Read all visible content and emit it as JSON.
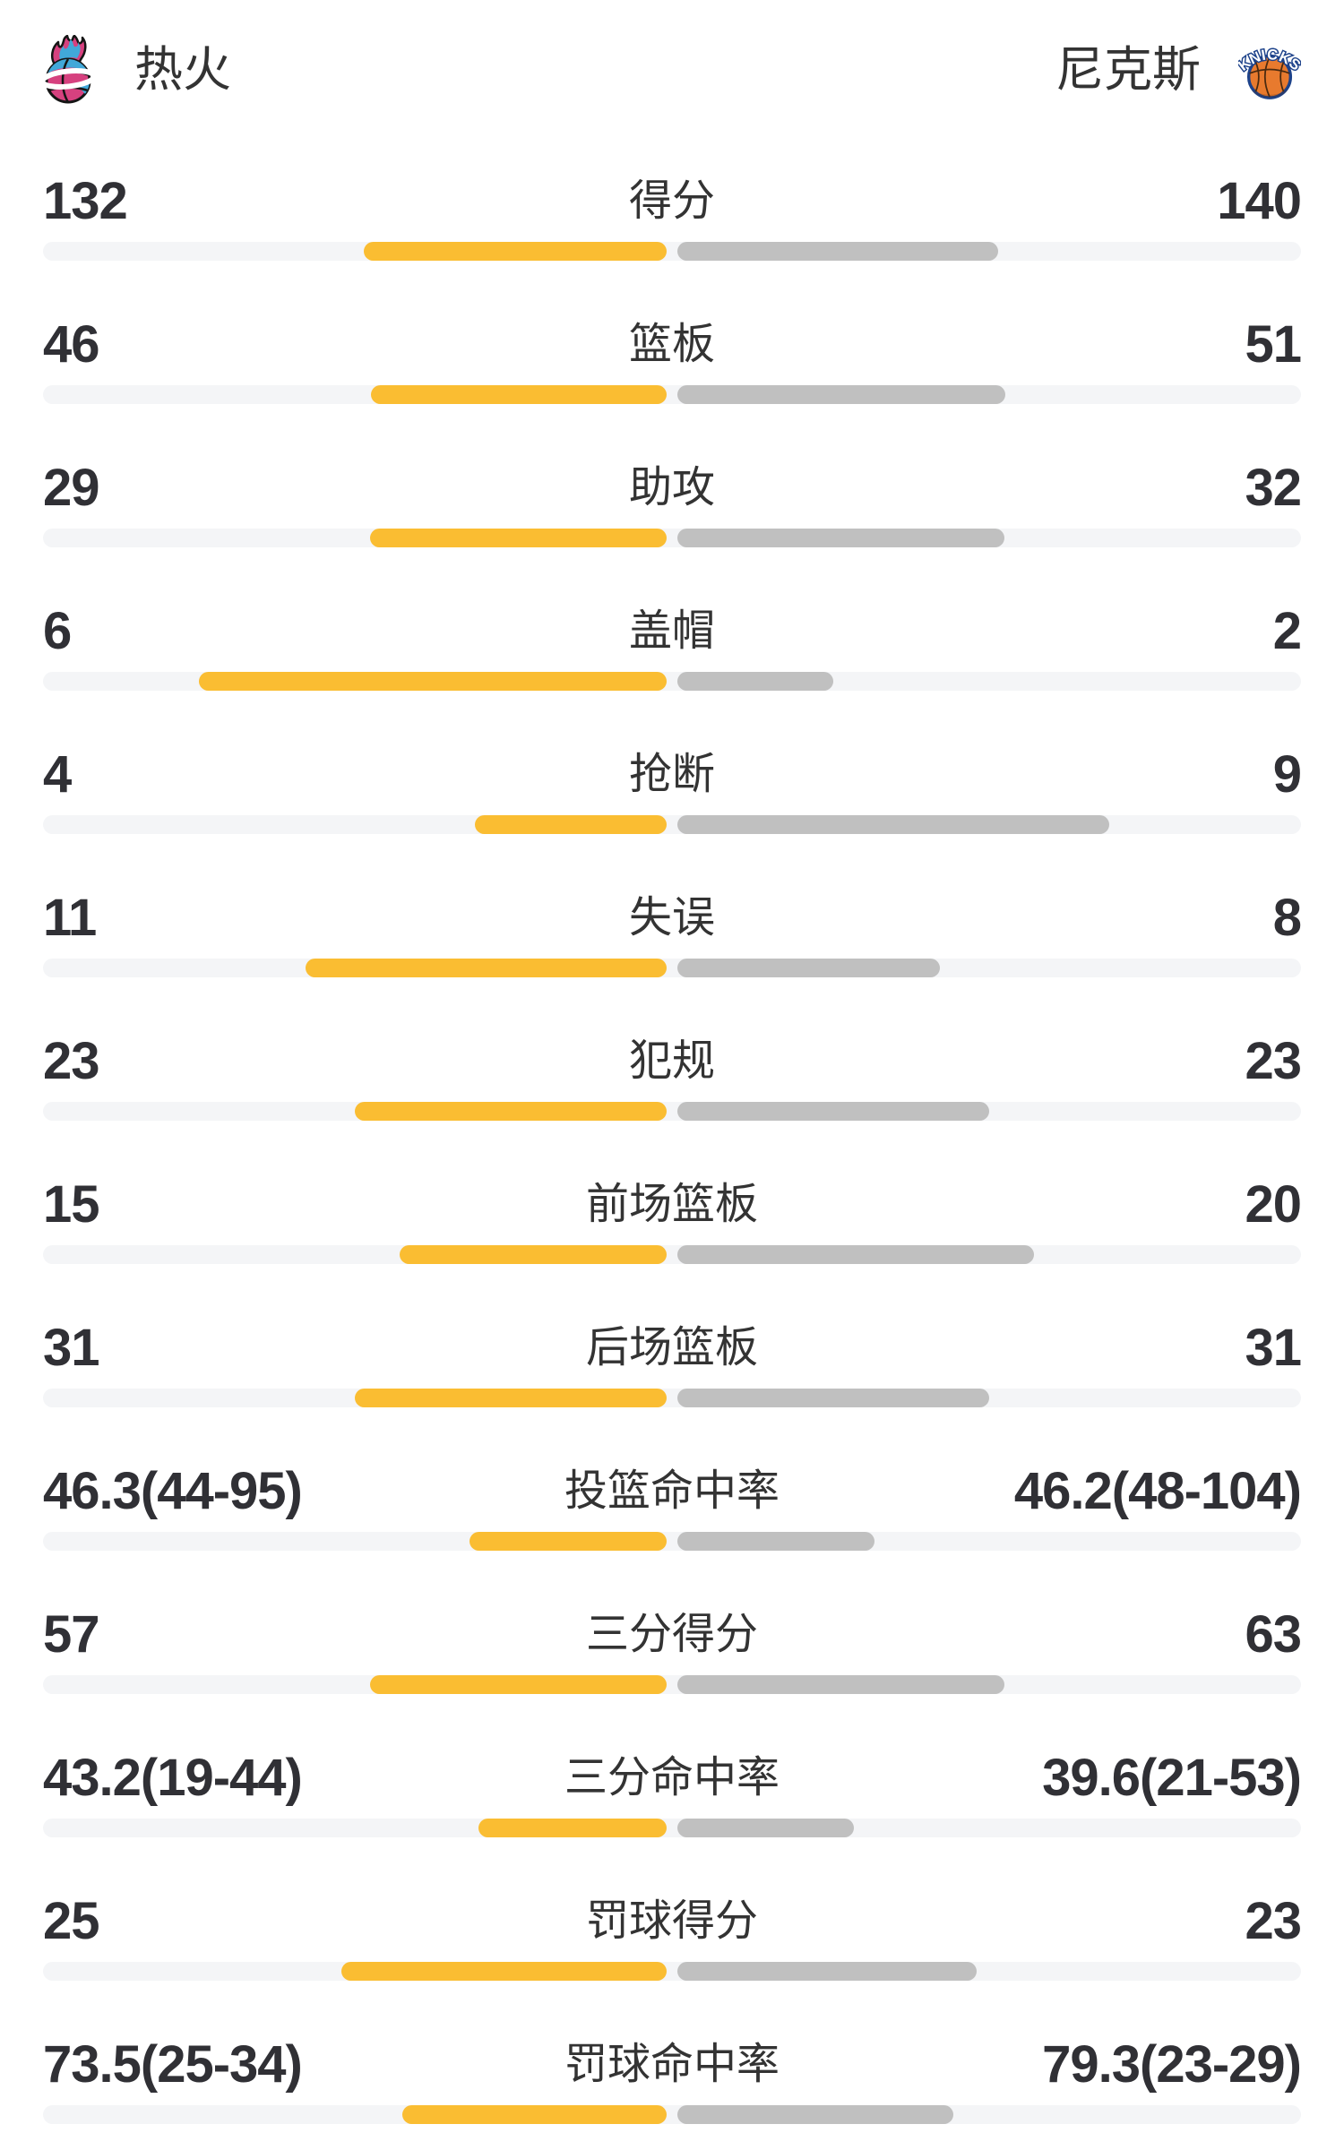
{
  "header": {
    "left_team": {
      "name": "热火"
    },
    "right_team": {
      "name": "尼克斯",
      "logo_text": "KNICKS"
    }
  },
  "icons": {
    "left_logo": "heat-flaming-basketball-logo",
    "right_logo": "knicks-basketball-logo"
  },
  "colors": {
    "left_bar": "#FABD32",
    "right_bar": "#C0C0C0",
    "track": "#F4F5F7",
    "value_text": "#303035",
    "label_text": "#333333",
    "heat_pink": "#D6417F",
    "heat_blue": "#41A8D9",
    "knicks_orange": "#E87A2E",
    "knicks_navy": "#1D428A"
  },
  "chart_data": {
    "type": "bar",
    "layout": "diverging-horizontal-duel",
    "teams": [
      "热火",
      "尼克斯"
    ],
    "legend_position": "header",
    "grid": false,
    "bar_rule": "count rows: width = value/(left+right) of half-track; percent rows: width = pct/(100+pct) = made/(made+attempts)",
    "rows": [
      {
        "label": "得分",
        "kind": "count",
        "left_value": 132,
        "right_value": 140,
        "left_display": "132",
        "right_display": "140"
      },
      {
        "label": "篮板",
        "kind": "count",
        "left_value": 46,
        "right_value": 51,
        "left_display": "46",
        "right_display": "51"
      },
      {
        "label": "助攻",
        "kind": "count",
        "left_value": 29,
        "right_value": 32,
        "left_display": "29",
        "right_display": "32"
      },
      {
        "label": "盖帽",
        "kind": "count",
        "left_value": 6,
        "right_value": 2,
        "left_display": "6",
        "right_display": "2"
      },
      {
        "label": "抢断",
        "kind": "count",
        "left_value": 4,
        "right_value": 9,
        "left_display": "4",
        "right_display": "9"
      },
      {
        "label": "失误",
        "kind": "count",
        "left_value": 11,
        "right_value": 8,
        "left_display": "11",
        "right_display": "8"
      },
      {
        "label": "犯规",
        "kind": "count",
        "left_value": 23,
        "right_value": 23,
        "left_display": "23",
        "right_display": "23"
      },
      {
        "label": "前场篮板",
        "kind": "count",
        "left_value": 15,
        "right_value": 20,
        "left_display": "15",
        "right_display": "20"
      },
      {
        "label": "后场篮板",
        "kind": "count",
        "left_value": 31,
        "right_value": 31,
        "left_display": "31",
        "right_display": "31"
      },
      {
        "label": "投篮命中率",
        "kind": "percent",
        "left_value": 46.3,
        "right_value": 46.2,
        "left_display": "46.3(44-95)",
        "right_display": "46.2(48-104)"
      },
      {
        "label": "三分得分",
        "kind": "count",
        "left_value": 57,
        "right_value": 63,
        "left_display": "57",
        "right_display": "63"
      },
      {
        "label": "三分命中率",
        "kind": "percent",
        "left_value": 43.2,
        "right_value": 39.6,
        "left_display": "43.2(19-44)",
        "right_display": "39.6(21-53)"
      },
      {
        "label": "罚球得分",
        "kind": "count",
        "left_value": 25,
        "right_value": 23,
        "left_display": "25",
        "right_display": "23"
      },
      {
        "label": "罚球命中率",
        "kind": "percent",
        "left_value": 73.5,
        "right_value": 79.3,
        "left_display": "73.5(25-34)",
        "right_display": "79.3(23-29)"
      }
    ]
  }
}
